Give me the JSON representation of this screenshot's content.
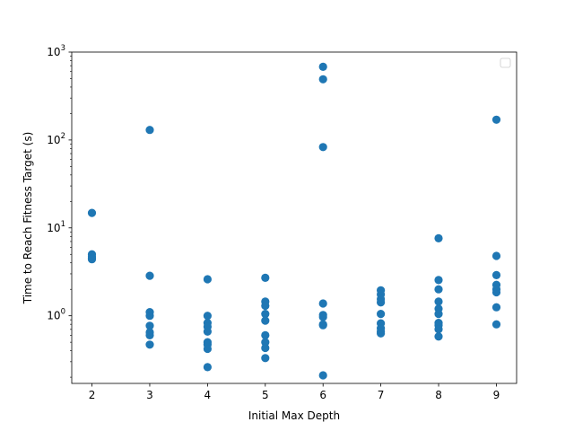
{
  "chart_data": {
    "type": "scatter",
    "title": "",
    "xlabel": "Initial Max Depth",
    "ylabel": "Time to Reach Fitness Target (s)",
    "x_ticks": [
      2,
      3,
      4,
      5,
      6,
      7,
      8,
      9
    ],
    "xlim": [
      1.65,
      9.35
    ],
    "y_scale": "log",
    "ylim": [
      0.17,
      1000
    ],
    "y_ticks": [
      {
        "value": 1,
        "base": "10",
        "exp": "0"
      },
      {
        "value": 10,
        "base": "10",
        "exp": "1"
      },
      {
        "value": 100,
        "base": "10",
        "exp": "2"
      },
      {
        "value": 1000,
        "base": "10",
        "exp": "3"
      }
    ],
    "grid": false,
    "legend": {
      "placement": "upper right",
      "entries": []
    },
    "marker_color": "#1f77b4",
    "points": [
      {
        "x": 2,
        "y": 14.8
      },
      {
        "x": 2,
        "y": 5.0
      },
      {
        "x": 2,
        "y": 4.7
      },
      {
        "x": 2,
        "y": 4.5
      },
      {
        "x": 2,
        "y": 4.4
      },
      {
        "x": 3,
        "y": 130
      },
      {
        "x": 3,
        "y": 2.85
      },
      {
        "x": 3,
        "y": 1.1
      },
      {
        "x": 3,
        "y": 1.0
      },
      {
        "x": 3,
        "y": 0.77
      },
      {
        "x": 3,
        "y": 0.65
      },
      {
        "x": 3,
        "y": 0.6
      },
      {
        "x": 3,
        "y": 0.47
      },
      {
        "x": 4,
        "y": 2.6
      },
      {
        "x": 4,
        "y": 1.0
      },
      {
        "x": 4,
        "y": 0.83
      },
      {
        "x": 4,
        "y": 0.75
      },
      {
        "x": 4,
        "y": 0.66
      },
      {
        "x": 4,
        "y": 0.5
      },
      {
        "x": 4,
        "y": 0.47
      },
      {
        "x": 4,
        "y": 0.42
      },
      {
        "x": 4,
        "y": 0.26
      },
      {
        "x": 5,
        "y": 2.7
      },
      {
        "x": 5,
        "y": 1.45
      },
      {
        "x": 5,
        "y": 1.3
      },
      {
        "x": 5,
        "y": 1.05
      },
      {
        "x": 5,
        "y": 0.88
      },
      {
        "x": 5,
        "y": 0.6
      },
      {
        "x": 5,
        "y": 0.5
      },
      {
        "x": 5,
        "y": 0.43
      },
      {
        "x": 5,
        "y": 0.33
      },
      {
        "x": 6,
        "y": 680
      },
      {
        "x": 6,
        "y": 490
      },
      {
        "x": 6,
        "y": 83
      },
      {
        "x": 6,
        "y": 1.38
      },
      {
        "x": 6,
        "y": 1.02
      },
      {
        "x": 6,
        "y": 0.97
      },
      {
        "x": 6,
        "y": 0.8
      },
      {
        "x": 6,
        "y": 0.78
      },
      {
        "x": 6,
        "y": 0.21
      },
      {
        "x": 7,
        "y": 1.95
      },
      {
        "x": 7,
        "y": 1.75
      },
      {
        "x": 7,
        "y": 1.55
      },
      {
        "x": 7,
        "y": 1.42
      },
      {
        "x": 7,
        "y": 1.05
      },
      {
        "x": 7,
        "y": 0.82
      },
      {
        "x": 7,
        "y": 0.72
      },
      {
        "x": 7,
        "y": 0.66
      },
      {
        "x": 7,
        "y": 0.63
      },
      {
        "x": 8,
        "y": 7.6
      },
      {
        "x": 8,
        "y": 2.55
      },
      {
        "x": 8,
        "y": 2.0
      },
      {
        "x": 8,
        "y": 1.45
      },
      {
        "x": 8,
        "y": 1.2
      },
      {
        "x": 8,
        "y": 1.05
      },
      {
        "x": 8,
        "y": 0.83
      },
      {
        "x": 8,
        "y": 0.78
      },
      {
        "x": 8,
        "y": 0.7
      },
      {
        "x": 8,
        "y": 0.58
      },
      {
        "x": 9,
        "y": 170
      },
      {
        "x": 9,
        "y": 4.8
      },
      {
        "x": 9,
        "y": 2.9
      },
      {
        "x": 9,
        "y": 2.25
      },
      {
        "x": 9,
        "y": 2.0
      },
      {
        "x": 9,
        "y": 1.85
      },
      {
        "x": 9,
        "y": 1.25
      },
      {
        "x": 9,
        "y": 0.8
      }
    ]
  }
}
